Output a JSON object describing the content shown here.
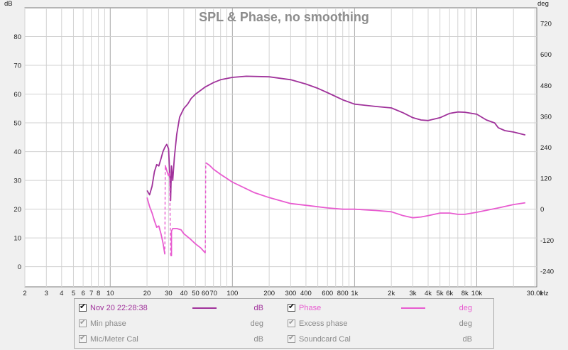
{
  "chart_data": {
    "type": "line",
    "title": "SPL & Phase, no smoothing",
    "x_axis": {
      "scale": "log",
      "range": [
        2,
        31000
      ],
      "unit_label": "Hz",
      "tick_labels": [
        {
          "v": 2,
          "t": "2"
        },
        {
          "v": 3,
          "t": "3"
        },
        {
          "v": 4,
          "t": "4"
        },
        {
          "v": 5,
          "t": "5"
        },
        {
          "v": 6,
          "t": "6"
        },
        {
          "v": 7,
          "t": "7"
        },
        {
          "v": 8,
          "t": "8"
        },
        {
          "v": 10,
          "t": "10"
        },
        {
          "v": 20,
          "t": "20"
        },
        {
          "v": 30,
          "t": "30"
        },
        {
          "v": 40,
          "t": "40"
        },
        {
          "v": 50,
          "t": "50"
        },
        {
          "v": 60,
          "t": "60"
        },
        {
          "v": 70,
          "t": "70"
        },
        {
          "v": 100,
          "t": "100"
        },
        {
          "v": 200,
          "t": "200"
        },
        {
          "v": 300,
          "t": "300"
        },
        {
          "v": 400,
          "t": "400"
        },
        {
          "v": 600,
          "t": "600"
        },
        {
          "v": 800,
          "t": "800"
        },
        {
          "v": 1000,
          "t": "1k"
        },
        {
          "v": 2000,
          "t": "2k"
        },
        {
          "v": 3000,
          "t": "3k"
        },
        {
          "v": 4000,
          "t": "4k"
        },
        {
          "v": 5000,
          "t": "5k"
        },
        {
          "v": 6000,
          "t": "6k"
        },
        {
          "v": 8000,
          "t": "8k"
        },
        {
          "v": 10000,
          "t": "10k"
        },
        {
          "v": 30000,
          "t": "30.0k"
        }
      ]
    },
    "y_left": {
      "label": "dB",
      "range": [
        -7,
        90
      ],
      "ticks": [
        0,
        10,
        20,
        30,
        40,
        50,
        60,
        70,
        80
      ]
    },
    "y_right": {
      "label": "deg",
      "range": [
        -301,
        781
      ],
      "ticks": [
        -240,
        -120,
        0,
        120,
        240,
        360,
        480,
        600,
        720
      ]
    },
    "grid": true,
    "series": [
      {
        "name": "Nov 20 22:28:38",
        "axis": "left",
        "color": "#a0329b",
        "points": [
          [
            20,
            26.5
          ],
          [
            21,
            25
          ],
          [
            22,
            28
          ],
          [
            23,
            33
          ],
          [
            24,
            35.5
          ],
          [
            25,
            35
          ],
          [
            26,
            37.5
          ],
          [
            27,
            40
          ],
          [
            28,
            41.5
          ],
          [
            29,
            42.5
          ],
          [
            30,
            41
          ],
          [
            30.8,
            31
          ],
          [
            31.2,
            23
          ],
          [
            31.7,
            35
          ],
          [
            32.5,
            30
          ],
          [
            33.5,
            38
          ],
          [
            35,
            46
          ],
          [
            37,
            52
          ],
          [
            40,
            55
          ],
          [
            43,
            56.5
          ],
          [
            46,
            58.5
          ],
          [
            50,
            60
          ],
          [
            60,
            62.5
          ],
          [
            70,
            64
          ],
          [
            80,
            65
          ],
          [
            100,
            65.8
          ],
          [
            130,
            66.2
          ],
          [
            200,
            66
          ],
          [
            300,
            65
          ],
          [
            400,
            63.5
          ],
          [
            500,
            62
          ],
          [
            600,
            60.5
          ],
          [
            800,
            58
          ],
          [
            1000,
            56.5
          ],
          [
            1500,
            55.7
          ],
          [
            2000,
            55.2
          ],
          [
            2500,
            53.5
          ],
          [
            3000,
            51.8
          ],
          [
            3500,
            51
          ],
          [
            4000,
            50.8
          ],
          [
            5000,
            51.8
          ],
          [
            6000,
            53.3
          ],
          [
            7000,
            53.8
          ],
          [
            8000,
            53.7
          ],
          [
            10000,
            53
          ],
          [
            12000,
            51
          ],
          [
            14000,
            50
          ],
          [
            15000,
            48.3
          ],
          [
            17000,
            47.3
          ],
          [
            20000,
            46.8
          ],
          [
            25000,
            45.8
          ]
        ]
      },
      {
        "name": "Phase",
        "axis": "right",
        "color": "#e85bd0",
        "dashed_wraps": [
          28.2,
          31.7,
          60.5
        ],
        "points": [
          [
            20,
            45
          ],
          [
            21,
            10
          ],
          [
            22,
            -15
          ],
          [
            23,
            -45
          ],
          [
            24,
            -70
          ],
          [
            25,
            -65
          ],
          [
            26,
            -95
          ],
          [
            27,
            -130
          ],
          [
            28,
            -175
          ],
          [
            28.2,
            170
          ],
          [
            29,
            150
          ],
          [
            30,
            130
          ],
          [
            30.6,
            140
          ],
          [
            31.2,
            -180
          ],
          [
            31.7,
            -180
          ],
          [
            31.7,
            -85
          ],
          [
            32.5,
            -75
          ],
          [
            35,
            -75
          ],
          [
            38,
            -80
          ],
          [
            40,
            -95
          ],
          [
            45,
            -115
          ],
          [
            50,
            -135
          ],
          [
            55,
            -150
          ],
          [
            60,
            -170
          ],
          [
            60.5,
            180
          ],
          [
            65,
            170
          ],
          [
            70,
            155
          ],
          [
            80,
            135
          ],
          [
            100,
            105
          ],
          [
            150,
            65
          ],
          [
            200,
            45
          ],
          [
            300,
            22
          ],
          [
            400,
            15
          ],
          [
            600,
            5
          ],
          [
            800,
            0
          ],
          [
            1000,
            0
          ],
          [
            1500,
            -5
          ],
          [
            2000,
            -10
          ],
          [
            2500,
            -25
          ],
          [
            3000,
            -33
          ],
          [
            3500,
            -30
          ],
          [
            4000,
            -25
          ],
          [
            5000,
            -15
          ],
          [
            6000,
            -15
          ],
          [
            7000,
            -20
          ],
          [
            8000,
            -20
          ],
          [
            10000,
            -12
          ],
          [
            15000,
            5
          ],
          [
            20000,
            18
          ],
          [
            25000,
            25
          ]
        ]
      }
    ]
  },
  "legend": {
    "rows": [
      {
        "name": "Nov 20 22:28:38",
        "checked": true,
        "enabled": true,
        "color": "#a0329b",
        "unit": "dB",
        "col": 0,
        "row": 0
      },
      {
        "name": "Phase",
        "checked": true,
        "enabled": true,
        "color": "#e85bd0",
        "unit": "deg",
        "col": 1,
        "row": 0
      },
      {
        "name": "Min phase",
        "checked": true,
        "enabled": false,
        "color": "",
        "unit": "deg",
        "col": 0,
        "row": 1
      },
      {
        "name": "Excess phase",
        "checked": true,
        "enabled": false,
        "color": "",
        "unit": "deg",
        "col": 1,
        "row": 1
      },
      {
        "name": "Mic/Meter Cal",
        "checked": true,
        "enabled": false,
        "color": "",
        "unit": "dB",
        "col": 0,
        "row": 2
      },
      {
        "name": "Soundcard Cal",
        "checked": true,
        "enabled": false,
        "color": "",
        "unit": "dB",
        "col": 1,
        "row": 2
      }
    ]
  }
}
